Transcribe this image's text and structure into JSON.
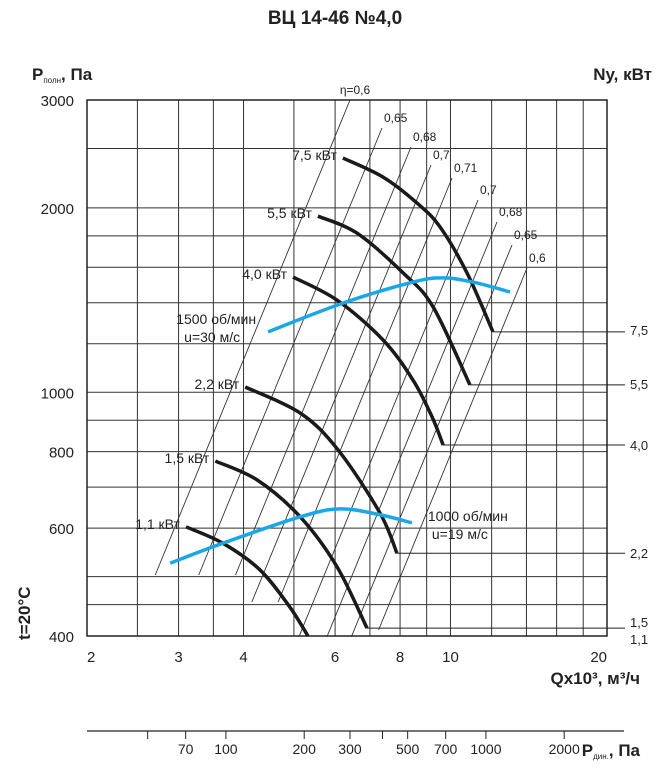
{
  "header": {
    "title": "ВЦ 14-46 №4,0",
    "y_label_main": "P",
    "y_label_sub": "полн",
    "y_label_unit": ", Па",
    "right_label": "Ny, кВт",
    "temperature": "t=20°C",
    "x_label": "Qx10³, м³/ч",
    "pd_label_main": "P",
    "pd_label_sub": "дин.",
    "pd_label_unit": ", Па"
  },
  "colors": {
    "power": "#1a1a1a",
    "speed": "#1aa7e8",
    "grid": "#333333",
    "eta": "#333333"
  },
  "chart_data": {
    "type": "line",
    "title": "ВЦ 14-46 №4,0",
    "xlabel": "Qx10³, м³/ч",
    "ylabel": "Pполн, Па",
    "xscale": "log",
    "yscale": "log",
    "xlim": [
      2,
      20
    ],
    "ylim": [
      400,
      3000
    ],
    "grid": true,
    "xticks": [
      2,
      3,
      4,
      6,
      8,
      10,
      20
    ],
    "xtick_labels": [
      "2",
      "3",
      "4",
      "6",
      "8",
      "10",
      "20"
    ],
    "yticks": [
      400,
      600,
      800,
      1000,
      2000,
      3000
    ],
    "ytick_labels": [
      "400",
      "600",
      "800",
      "1000",
      "2000",
      "3000"
    ],
    "power_curves": [
      {
        "label": "7,5 кВт",
        "right_label": "7,5",
        "points": [
          [
            6.21,
            2412
          ],
          [
            7.42,
            2245
          ],
          [
            8.62,
            2037
          ],
          [
            9.55,
            1861
          ],
          [
            10.76,
            1566
          ],
          [
            12.07,
            1255
          ]
        ]
      },
      {
        "label": "5,5 кВт",
        "right_label": "5,5",
        "points": [
          [
            5.56,
            1939
          ],
          [
            6.61,
            1819
          ],
          [
            8.11,
            1566
          ],
          [
            9.26,
            1378
          ],
          [
            10.9,
            1028
          ]
        ]
      },
      {
        "label": "4,0 кВт",
        "right_label": "4,0",
        "points": [
          [
            4.98,
            1542
          ],
          [
            6.05,
            1414
          ],
          [
            7.42,
            1217
          ],
          [
            8.47,
            1047
          ],
          [
            9.22,
            911
          ],
          [
            9.68,
            820
          ]
        ]
      },
      {
        "label": "2,2 кВт",
        "right_label": "2,2",
        "points": [
          [
            4.03,
            1020
          ],
          [
            5.14,
            925
          ],
          [
            6.08,
            805
          ],
          [
            7.32,
            635
          ],
          [
            7.89,
            546
          ]
        ]
      },
      {
        "label": "1,5 кВт",
        "right_label": "1,5",
        "points": [
          [
            3.53,
            772
          ],
          [
            4.25,
            719
          ],
          [
            5.14,
            626
          ],
          [
            6.05,
            519
          ],
          [
            6.91,
            412
          ]
        ]
      },
      {
        "label": "1,1 кВт",
        "right_label": "1,1",
        "points": [
          [
            3.1,
            603
          ],
          [
            3.65,
            567
          ],
          [
            4.3,
            513
          ],
          [
            4.91,
            446
          ],
          [
            5.32,
            400
          ]
        ]
      }
    ],
    "speed_curves": [
      {
        "label": "1500 об/мин",
        "sublabel": "u=30 м/с",
        "points": [
          [
            4.46,
            1255
          ],
          [
            6.21,
            1398
          ],
          [
            8.47,
            1513
          ],
          [
            9.68,
            1537
          ],
          [
            11.05,
            1513
          ],
          [
            13.02,
            1458
          ]
        ]
      },
      {
        "label": "1000 об/мин",
        "sublabel": "u=19 м/с",
        "points": [
          [
            2.89,
            526
          ],
          [
            3.65,
            567
          ],
          [
            5.14,
            626
          ],
          [
            6.13,
            645
          ],
          [
            7.32,
            631
          ],
          [
            8.43,
            612
          ]
        ]
      }
    ],
    "efficiency_lines": [
      {
        "label": "η=0,6"
      },
      {
        "label": "0,65"
      },
      {
        "label": "0,68"
      },
      {
        "label": "0,7"
      },
      {
        "label": "0,71"
      },
      {
        "label": "0,7"
      },
      {
        "label": "0,68"
      },
      {
        "label": "0,65"
      },
      {
        "label": "0,6"
      }
    ],
    "dynamic_pressure_axis": {
      "label": "Pдин., Па",
      "ticks": [
        50,
        70,
        100,
        200,
        300,
        400,
        500,
        700,
        1000,
        2000
      ],
      "tick_labels": [
        "",
        "70",
        "100",
        "200",
        "300",
        "",
        "500",
        "700",
        "1000",
        "2000"
      ]
    }
  }
}
